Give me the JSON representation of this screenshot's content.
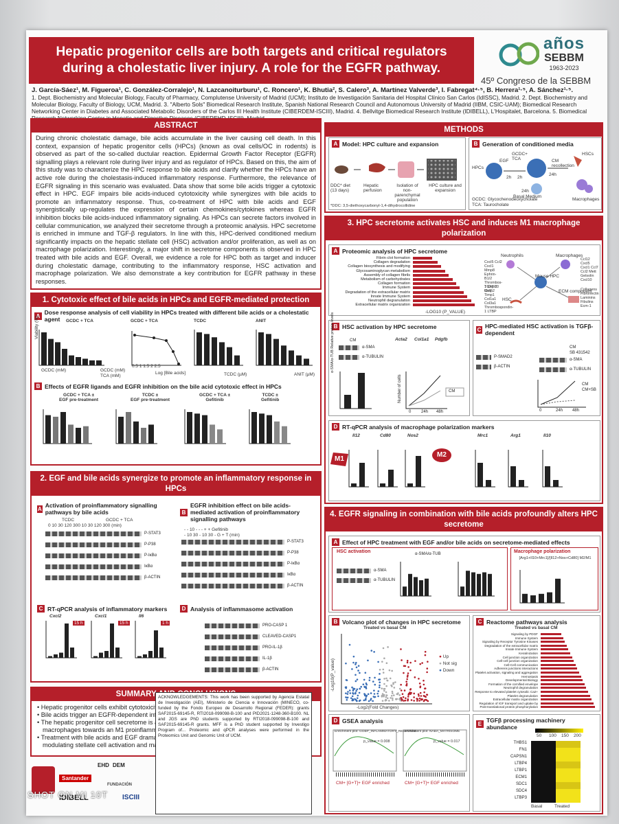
{
  "title": {
    "line1": "Hepatic progenitor cells are both targets and critical regulators",
    "line2": "during a cholestatic liver injury. A role for the EGFR pathway."
  },
  "logo": {
    "anos": "años",
    "sebbm": "SEBBM",
    "years": "1963-2023",
    "congress": "45º Congreso de la SEBBM"
  },
  "authors": {
    "names": "J. García-Sáez¹, M. Figueroa¹, C. González-Corralejo¹, N. Lazcanoiturburu¹, C. Roncero¹, K. Bhutia², S. Calero³, A. Martínez Valverde³, I. Fabregat⁴·⁵, B. Herrera¹·⁵, A. Sánchez¹·⁵.",
    "affil": "1. Dept. Biochemistry and Molecular Biology, Faculty of Pharmacy, Complutense University of Madrid (UCM); Instituto de Investigación Sanitaria del Hospital Clínico San Carlos (IdISSC), Madrid. 2. Dept. Biochemistry and Molecular Biology, Faculty of Biology, UCM, Madrid. 3. \"Alberto Sols\" Biomedical Research Institute, Spanish National Research Council and Autonomous University of Madrid (IIBM, CSIC-UAM); Biomedical Research Networking Center in Diabetes and Associated Metabolic Disorders of the Carlos III Health Institute (CIBERDEM-ISCIII), Madrid. 4. Bellvitge Biomedical Research Institute (IDIBELL), L'Hospitalet, Barcelona. 5. Biomedical Research Networking Center in Hepatic and Digestive Diseases (CIBEREHD-ISCIII), Madrid."
  },
  "abstract": {
    "header": "ABSTRACT",
    "text": "During chronic cholestatic damage, bile acids accumulate in the liver causing cell death. In this context, expansion of hepatic progenitor cells (HPCs) (known as oval cells/OC in rodents) is observed as part of the so-called ductular reaction. Epidermal Growth Factor Receptor (EGFR) signalling plays a relevant role during liver injury and as regulator of HPCs. Based on this, the aim of this study was to characterize the HPC response to bile acids and clarify whether the HPCs have an active role during the cholestasis-induced inflammatory response. Furthermore, the relevance of EGFR signaling in this scenario was evaluated. Data show that some bile acids trigger a cytotoxic effect in HPC. EGF impairs bile acids-induced cytotoxicity while synergizes with bile acids to promote an inflammatory response. Thus, co-treatment of HPC with bile acids and EGF synergistically up-regulates the expression of certain chemokines/cytokines whereas EGFR inhibition blocks bile acids-induced inflammatory signaling. As HPCs can secrete factors involved in cellular communication, we analyzed their secretome through a proteomic analysis. HPC secretome is enriched in immune and TGF-β regulators. In line with this, HPC-derived conditioned medium significantly impacts on the hepatic stellate cell (HSC) activation and/or proliferation, as well as on macrophage polarization. Interestingly, a major shift in secretome components is observed in HPC treated with bile acids and EGF. Overall, we evidence a role for HPC both as target and inducer during cholestatic damage, contributing to the inflammatory response, HSC activation and macrophage polarization. We also demonstrate a key contribution for EGFR pathway in these responses."
  },
  "methods": {
    "header": "METHODS",
    "a": "Model: HPC culture and expansion",
    "b": "Generation of conditioned media",
    "ddc": "DDC* diet (13 days)",
    "perfusion": "Hepatic perfusion",
    "isolation": "Isolation of non-parenchymal population",
    "culture": "HPC culture and expansion",
    "footnote": "*DDC: 3,5-diethoxycarbonyl-1,4-dihydrocollidine",
    "hpcs": "HPCs",
    "egf": "EGF",
    "gcdc": "GCDC+ TCA",
    "h2a": "2h",
    "h2b": "2h",
    "h24a": "24h",
    "h24b": "24h",
    "basal": "Basal Medium",
    "cm": "CM recollection",
    "hscs": "HSCs",
    "macro": "Macrophages",
    "gcdc_def": "GCDC: Glycochenodeoxycholate",
    "tca_def": "TCA: Taurocholate"
  },
  "sec1": {
    "header": "1. Cytotoxic effect of bile acids in HPCs and EGFR-mediated protection",
    "a": "Dose response analysis of cell viability in HPCs treated with different bile acids or a cholestatic agent",
    "b": "Effects of EGFR ligands and EGFR inhibition on the bile acid cytotoxic effect in HPCs",
    "t1": "GCDC + TCA",
    "t2": "GCDC + TCA",
    "t3": "TCDC",
    "t4": "ANIT",
    "t5": "GCDC + TCA ±\nEGF pre-treatment",
    "t6": "TCDC ±\nEGF pre-treatment",
    "t7": "GCDC + TCA ±\nGefitinib",
    "t8": "TCDC ±\nGefitinib",
    "ylab": "Viability (%)",
    "xlab1": "GCDC (mM)",
    "xlab2": "TCA (mM)",
    "xlab3": "Log [Bile acids]",
    "xlab4": "TCDC (µM)",
    "xlab5": "ANIT (µM)"
  },
  "sec2": {
    "header": "2. EGF and bile acids synergize to promote an inflammatory response in HPCs",
    "a": "Activation of proinflammatory signalling pathways by bile acids",
    "b": "EGFR inhibition effect on bile acids-mediated activation of proinflammatory signalling pathways",
    "c": "RT-qPCR analysis of inflammatory markers",
    "d": "Analysis of inflammasome activation",
    "tcdc": "TCDC",
    "gcdctca": "GCDC + TCA",
    "blots_a": [
      "P-STAT3",
      "P-P38",
      "P-IκBα",
      "IκBα",
      "β-ACTIN"
    ],
    "blots_b": [
      "P-STAT3",
      "P-P38",
      "P-IκBα",
      "IκBα",
      "β-ACTIN"
    ],
    "blots_d": [
      "PRO-CASP 1",
      "CLEAVED-CASP1",
      "PRO-IL-1β",
      "IL-1β",
      "β-ACTIN"
    ],
    "genes": [
      "Cxcl2",
      "Cxcl1",
      "Il6"
    ],
    "time": "15 h",
    "time3": "1 h",
    "ylab": "mRNA levels (fold increase)"
  },
  "sec3": {
    "header": "3. HPC secretome activates HSC and induces M1 macrophage polarization",
    "a": "Proteomic analysis of HPC secretome",
    "b": "HSC activation by HPC secretome",
    "c": "HPC-mediated HSC activation is TGFβ-dependent",
    "d": "RT-qPCR analysis of macrophage polarization markers",
    "pathways": [
      "Fibrin clot formation",
      "Collagen degradation",
      "Collagen biosynthesis and modifying",
      "Glycosaminoglycan metabolism",
      "Assembly of collagen fibrils",
      "Metabolism of carbohydrates",
      "Collagen formation",
      "Immune System",
      "Degradation of the extracellular matrix",
      "Innate Immune System",
      "Neutrophil degranulation",
      "Extracellular matrix organization"
    ],
    "pvals": [
      3.1,
      4.0,
      4.6,
      5.2,
      5.8,
      6.4,
      7.0,
      7.6,
      8.2,
      8.8,
      9.4,
      10.0
    ],
    "xlab": "-LOG10 (P_VALUE)",
    "neutrophils": "Neutrophils",
    "macrophages": "Macrophages",
    "hsc": "HSC",
    "mouse": "Mouse HPC",
    "ecm": "ECM component",
    "gene_list1": "Cxcl5 Ccl2 Cxcl1 Mmp8 Ephrin-B1/2 Thrombos-1 Cxcl10 Ccl7",
    "gene_list2": "TGFβ-2 Mmp2 Timp1 Col1a1 Col3a1 Thrombospondin-1 LTBP",
    "gene_list3": "Ccl12 Cxcl5 Cxcl1 Ccl7 Ccl2 Mett Gelsolin Cxcl10",
    "gene_list4": "Collagens Fibronectin Laminins Fibulins Ecm-1",
    "blot_b": [
      "α-SMA",
      "α-TUBULIN"
    ],
    "blot_c": [
      "P-SMAD2",
      "β-ACTIN",
      "α-SMA",
      "α-TUBULIN"
    ],
    "cm": "CM",
    "sb": "SB 431542",
    "cmsb": "CM+SB",
    "genes_b": [
      "Acta2",
      "Col1a1",
      "Pdgfb"
    ],
    "m1": "M1",
    "m2": "M2",
    "m1genes": [
      "Il12",
      "Cd80",
      "Nos2"
    ],
    "m2genes": [
      "Mrc1",
      "Arg1",
      "Il10"
    ],
    "ylab_rel": "α-SMA/α-TUB Relative protein levels",
    "ylab_cells": "Number of cells",
    "t24": "24h",
    "t48": "48h",
    "t0": "0"
  },
  "sec4": {
    "header": "4. EGFR signaling in combination with bile acids profoundly alters HPC secretome",
    "a": "Effect of HPC treatment with EGF and/or bile acids on secretome-mediated effects",
    "hsc": "HSC activation",
    "macro": "Macrophage polarization",
    "macro_formula": "[Arg1+Il10+Mrc1]/[Il12+Nos+Cd80] M2/M1",
    "ratio": "α-SMA/α-TUB",
    "b": "Volcano plot of changes in HPC secretome",
    "b_title": "Treated vs basal CM",
    "up": "Up",
    "notsig": "Not sig",
    "down": "Down",
    "c": "Reactome pathways analysis",
    "c_title": "Treated vs basal CM",
    "react": [
      "Signaling by PDGF",
      "Immune System",
      "Signaling by Receptor Tyrosine Kinases",
      "Degradation of the extracellular matrix",
      "Innate Immune System",
      "Keratinization",
      "Cell junction organization",
      "Cell-cell junction organization",
      "Cell-Cell communication",
      "Adherens junctions interactions",
      "Platelet activation, signaling and aggregation",
      "Hemostasis",
      "Developmental Biology",
      "Formation of the cornified envelope",
      "Neutrophil degranulation",
      "Response to elevated platelet cytosolic Ca2+",
      "Platelet degranulation",
      "Extracellular matrix organization",
      "Regulation of IGF transport and uptake by",
      "Post-translational protein phosphorylation"
    ],
    "d": "GSEA analysis",
    "e": "TGFβ processing machinery abundance",
    "heat_rows": [
      "THBS1",
      "FN1",
      "CAPSN1",
      "LTBP4",
      "LTBP1",
      "ECM1",
      "SDC1",
      "SDC4",
      "LTBP3"
    ],
    "basal": "Basal",
    "treated": "Treated",
    "scale": [
      "50",
      "100",
      "150",
      "200"
    ],
    "pval1": "p_value = 0.008",
    "pval2": "p_value = 0.017",
    "gsea1": "Enrichment plot: GOBP_INFLAMMATORY_RESPONSE",
    "gsea2": "Enrichment plot: NABA_MATRISOME",
    "enriched": "CM+ [G+T]+ EGF enriched",
    "xlab": "-Log2(Fold Changes)",
    "ylab": "-Log10(P_value)"
  },
  "summary": {
    "header": "SUMMARY AND CONCLUSIONS",
    "items": [
      "Hepatic progenitor cells exhibit cytotoxicity in response to bile acids.",
      "Bile acids trigger an EGFR-dependent inflammatory response in hepatic progenitor cells.",
      "The hepatic progenitor cell secretome is able to activate hepatic stellate cells and polarize macrophages towards an M1 proinflammatory phenotype.",
      "Treatment with bile acids and EGF dramatically changes hepatic progenitor cell secretome, modulating stellate cell activation and macrophage polarization."
    ]
  },
  "ack": {
    "text": "ACKNOWLEDGEMENTS: This work has been supported by Agencia Estatal de Investigación (AEI), Ministerio de Ciencia e Innovación (MINECO, co-funded by the Fondo Europeo de Desarrollo Regional (FEDER): grants SAF2015-69145-R, RTI2018-099098-B-100 and PID2021-1248-360-B100. NL and JGS are PhD students supported by RTI2018-099098-B-100 and SAF2015-69145-R grants. MFF is a PhD student supported by Investigo Program of... Proteomic and qPCR analyses were performed in the Proteomics Unit and Genomic Unit of UCM."
  },
  "footer": {
    "l1": "Santander",
    "l2": "IDIBELL",
    "l3": "EHD",
    "l4": "DEM",
    "l5": "FUNDACIÓN",
    "l6": "ISCIII"
  },
  "watermark": "SHOT ON MI 10T"
}
